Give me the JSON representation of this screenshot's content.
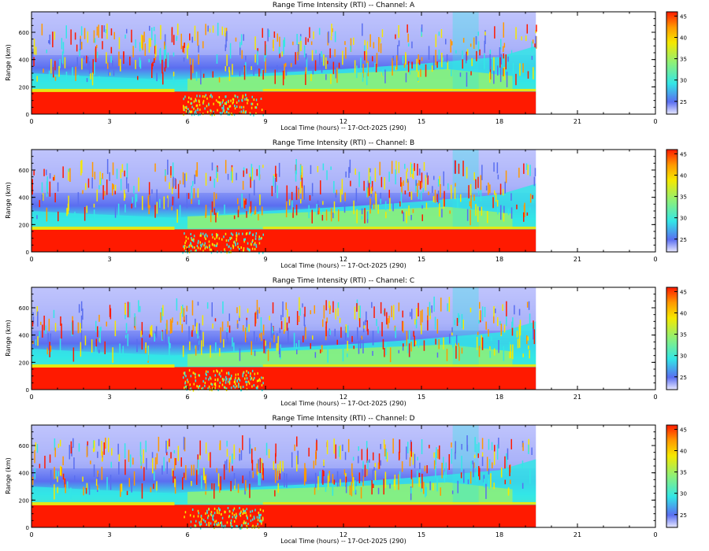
{
  "chart_data": [
    {
      "type": "heatmap",
      "title": "Range Time Intensity (RTI) -- Channel: A",
      "xlabel": "Local Time (hours) -- 17-Oct-2025 (290)",
      "ylabel": "Range (km)",
      "xlim": [
        0,
        24
      ],
      "ylim": [
        0,
        750
      ],
      "xticks": [
        "0",
        "3",
        "6",
        "9",
        "12",
        "15",
        "18",
        "21",
        "0"
      ],
      "yticks": [
        "0",
        "200",
        "400",
        "600"
      ],
      "colorbar_ticks": [
        "25",
        "30",
        "35",
        "40",
        "45"
      ],
      "colorbar_range": [
        22,
        46
      ],
      "data_end_hour": 19.4
    },
    {
      "type": "heatmap",
      "title": "Range Time Intensity (RTI) -- Channel: B",
      "xlabel": "Local Time (hours) -- 17-Oct-2025 (290)",
      "ylabel": "Range (km)",
      "xlim": [
        0,
        24
      ],
      "ylim": [
        0,
        750
      ],
      "xticks": [
        "0",
        "3",
        "6",
        "9",
        "12",
        "15",
        "18",
        "21",
        "0"
      ],
      "yticks": [
        "0",
        "200",
        "400",
        "600"
      ],
      "colorbar_ticks": [
        "25",
        "30",
        "35",
        "40",
        "45"
      ],
      "colorbar_range": [
        22,
        46
      ],
      "data_end_hour": 19.4
    },
    {
      "type": "heatmap",
      "title": "Range Time Intensity (RTI) -- Channel: C",
      "xlabel": "Local Time (hours) -- 17-Oct-2025 (290)",
      "ylabel": "Range (km)",
      "xlim": [
        0,
        24
      ],
      "ylim": [
        0,
        750
      ],
      "xticks": [
        "0",
        "3",
        "6",
        "9",
        "12",
        "15",
        "18",
        "21",
        "0"
      ],
      "yticks": [
        "0",
        "200",
        "400",
        "600"
      ],
      "colorbar_ticks": [
        "25",
        "30",
        "35",
        "40",
        "45"
      ],
      "colorbar_range": [
        22,
        46
      ],
      "data_end_hour": 19.4
    },
    {
      "type": "heatmap",
      "title": "Range Time Intensity (RTI) -- Channel: D",
      "xlabel": "Local Time (hours) -- 17-Oct-2025 (290)",
      "ylabel": "Range (km)",
      "xlim": [
        0,
        24
      ],
      "ylim": [
        0,
        750
      ],
      "xticks": [
        "0",
        "3",
        "6",
        "9",
        "12",
        "15",
        "18",
        "21",
        "0"
      ],
      "yticks": [
        "0",
        "200",
        "400",
        "600"
      ],
      "colorbar_ticks": [
        "25",
        "30",
        "35",
        "40",
        "45"
      ],
      "colorbar_range": [
        22,
        46
      ],
      "data_end_hour": 19.4
    }
  ],
  "colors": {
    "low": "#c9ccff",
    "mid_low": "#5a6ef0",
    "mid": "#33e6e6",
    "mid_high": "#8cf07a",
    "high_yellow": "#f5e800",
    "high_orange": "#ff9900",
    "max": "#ff1a00"
  }
}
